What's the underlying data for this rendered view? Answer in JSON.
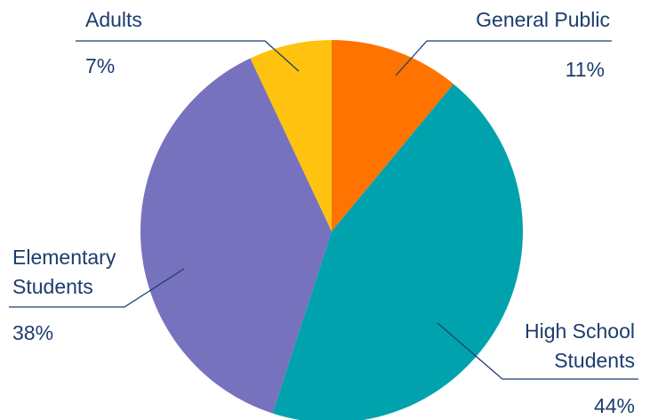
{
  "chart_data": {
    "type": "pie",
    "start_angle_deg": 0,
    "direction": "clockwise",
    "slices": [
      {
        "label": "General Public",
        "value": 11,
        "value_label": "11%",
        "color": "#FF7300"
      },
      {
        "label": "High School Students",
        "value": 44,
        "value_label": "44%",
        "color": "#00A2AE"
      },
      {
        "label": "Elementary Students",
        "value": 38,
        "value_label": "38%",
        "color": "#7772BE"
      },
      {
        "label": "Adults",
        "value": 7,
        "value_label": "7%",
        "color": "#FFC20E"
      }
    ],
    "label_text": {
      "general_public": "General Public",
      "high_school_line1": "High School",
      "high_school_line2": "Students",
      "elementary_line1": "Elementary",
      "elementary_line2": "Students",
      "adults": "Adults"
    },
    "text_color": "#1C3D6E",
    "leader_color": "#1C3D6E"
  }
}
